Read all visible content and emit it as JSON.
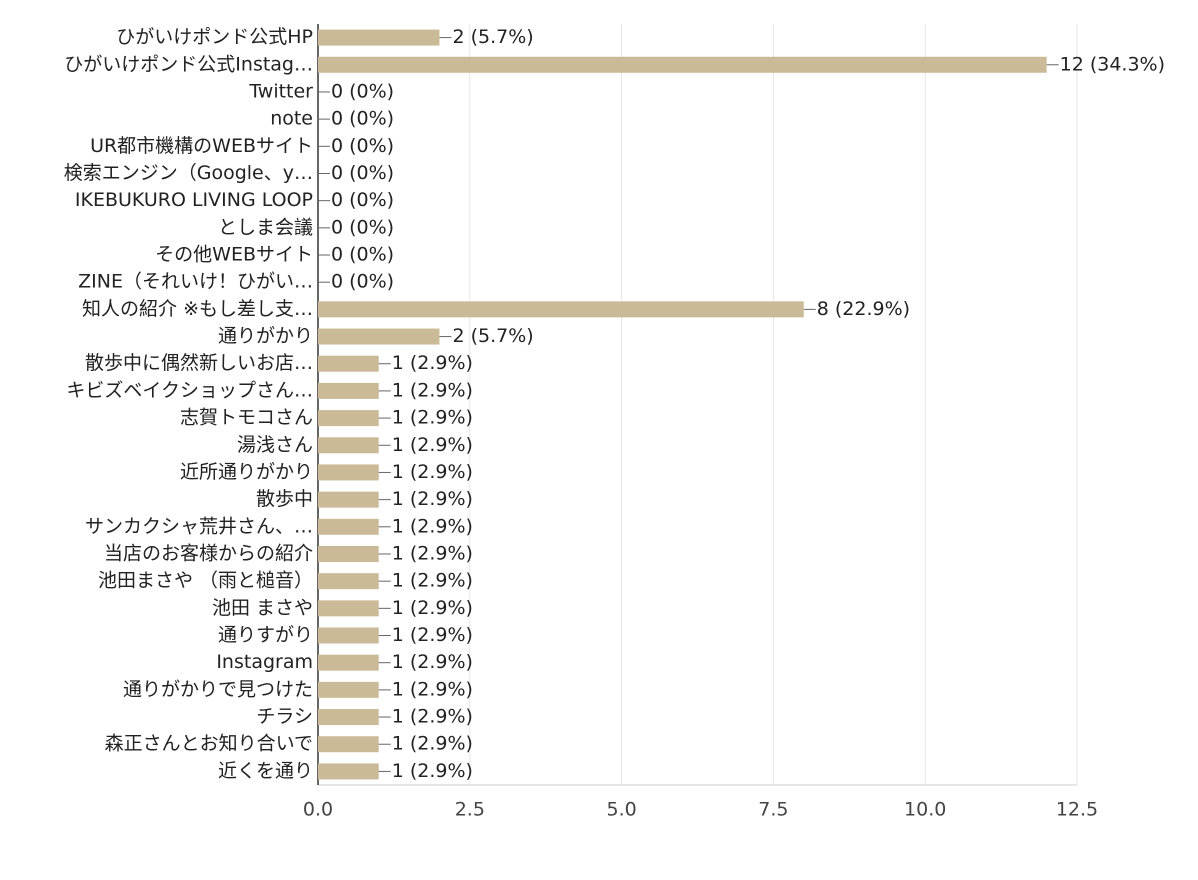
{
  "chart_data": {
    "type": "bar",
    "orientation": "horizontal",
    "color": "#cbba98",
    "grid": true,
    "categories": [
      "ひがいけポンド公式HP",
      "ひがいけポンド公式Instag…",
      "Twitter",
      "note",
      "UR都市機構のWEBサイト",
      "検索エンジン（Google、y…",
      "IKEBUKURO LIVING LOOP",
      "としま会議",
      "その他WEBサイト",
      "ZINE（それいけ！ひがい…",
      "知人の紹介 ※もし差し支…",
      "通りがかり",
      "散歩中に偶然新しいお店…",
      "キビズベイクショップさん…",
      "志賀トモコさん",
      "湯浅さん",
      "近所通りがかり",
      "散歩中",
      "サンカクシャ荒井さん、…",
      "当店のお客様からの紹介",
      "池田まさや （雨と槌音）",
      "池田 まさや",
      "通りすがり",
      "Instagram",
      "通りがかりで見つけた",
      "チラシ",
      "森正さんとお知り合いで",
      "近くを通り"
    ],
    "values": [
      2,
      12,
      0,
      0,
      0,
      0,
      0,
      0,
      0,
      0,
      8,
      2,
      1,
      1,
      1,
      1,
      1,
      1,
      1,
      1,
      1,
      1,
      1,
      1,
      1,
      1,
      1,
      1
    ],
    "value_labels": [
      "2 (5.7%)",
      "12 (34.3%)",
      "0 (0%)",
      "0 (0%)",
      "0 (0%)",
      "0 (0%)",
      "0 (0%)",
      "0 (0%)",
      "0 (0%)",
      "0 (0%)",
      "8 (22.9%)",
      "2 (5.7%)",
      "1 (2.9%)",
      "1 (2.9%)",
      "1 (2.9%)",
      "1 (2.9%)",
      "1 (2.9%)",
      "1 (2.9%)",
      "1 (2.9%)",
      "1 (2.9%)",
      "1 (2.9%)",
      "1 (2.9%)",
      "1 (2.9%)",
      "1 (2.9%)",
      "1 (2.9%)",
      "1 (2.9%)",
      "1 (2.9%)",
      "1 (2.9%)"
    ],
    "xlim": [
      0,
      12.5
    ],
    "xticks": [
      {
        "value": 0,
        "label": "0.0"
      },
      2.5,
      {
        "value": 5,
        "label": "5.0"
      },
      7.5,
      {
        "value": 10,
        "label": "10.0"
      },
      12.5
    ]
  }
}
